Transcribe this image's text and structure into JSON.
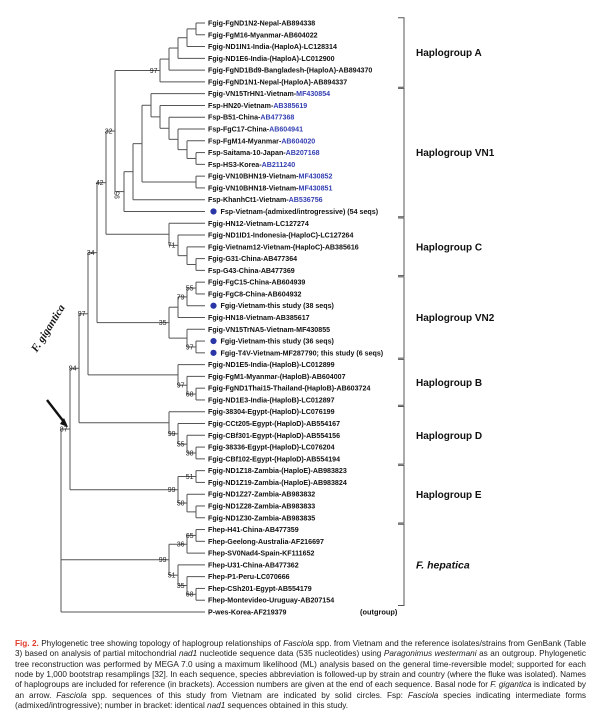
{
  "figure": {
    "fgig_label": "F. gigantica",
    "outgroup_note": "(outgroup)",
    "colors": {
      "line": "#555555",
      "accession_blue": "#3540b2",
      "dot_blue": "#2a35a8",
      "caption_red": "#e03a2a",
      "text": "#111111"
    },
    "groups": [
      {
        "label": "Haplogroup A",
        "from": 0,
        "to": 5,
        "italic": false
      },
      {
        "label": "Haplogroup VN1",
        "from": 6,
        "to": 16,
        "italic": false
      },
      {
        "label": "Haplogroup C",
        "from": 17,
        "to": 21,
        "italic": false
      },
      {
        "label": "Haplogroup VN2",
        "from": 22,
        "to": 28,
        "italic": false
      },
      {
        "label": "Haplogroup B",
        "from": 29,
        "to": 32,
        "italic": false
      },
      {
        "label": "Haplogroup D",
        "from": 33,
        "to": 37,
        "italic": false
      },
      {
        "label": "Haplogroup E",
        "from": 38,
        "to": 42,
        "italic": false
      },
      {
        "label": "F. hepatica",
        "from": 43,
        "to": 49,
        "italic": true
      }
    ],
    "taxa": [
      {
        "pre": "Fgig-FgND1N2-Nepal-",
        "acc": "AB894338",
        "blue": false,
        "dot": false
      },
      {
        "pre": "Fgig-FgM16-Myanmar-",
        "acc": "AB604022",
        "blue": false,
        "dot": false
      },
      {
        "pre": "Fgig-ND1IN1-India-(HaploA)-",
        "acc": "LC128314",
        "blue": false,
        "dot": false
      },
      {
        "pre": "Fgig-ND1E6-India-(HaploA)-",
        "acc": "LC012900",
        "blue": false,
        "dot": false
      },
      {
        "pre": "Fgig-FgND1Bd9-Bangladesh-(HaploA)-",
        "acc": "AB894370",
        "blue": false,
        "dot": false
      },
      {
        "pre": "Fgig-FgND1N1-Nepal-(HaploA)-",
        "acc": "AB894337",
        "blue": false,
        "dot": false
      },
      {
        "pre": "Fgig-VN15TrHN1-Vietnam-",
        "acc": "MF430854",
        "blue": true,
        "dot": false
      },
      {
        "pre": "Fsp-HN20-Vietnam-",
        "acc": "AB385619",
        "blue": true,
        "dot": false
      },
      {
        "pre": "Fsp-B51-China-",
        "acc": "AB477368",
        "blue": true,
        "dot": false
      },
      {
        "pre": "Fsp-FgC17-China-",
        "acc": "AB604941",
        "blue": true,
        "dot": false
      },
      {
        "pre": "Fsp-FgM14-Myanmar-",
        "acc": "AB604020",
        "blue": true,
        "dot": false
      },
      {
        "pre": "Fsp-Saitama-10-Japan-",
        "acc": "AB207168",
        "blue": true,
        "dot": false
      },
      {
        "pre": "Fsp-HS3-Korea-",
        "acc": "AB211240",
        "blue": true,
        "dot": false
      },
      {
        "pre": "Fgig-VN10BHN19-Vietnam-",
        "acc": "MF430852",
        "blue": true,
        "dot": false
      },
      {
        "pre": "Fgig-VN10BHN18-Vietnam-",
        "acc": "MF430851",
        "blue": true,
        "dot": false
      },
      {
        "pre": "Fsp-KhanhCt1-Vietnam-",
        "acc": "AB536756",
        "blue": true,
        "dot": false
      },
      {
        "pre": "Fsp-Vietnam-(admixed/introgressive) (54 seqs)",
        "acc": "",
        "blue": false,
        "dot": true
      },
      {
        "pre": "Fgig-HN12-Vietnam-",
        "acc": "LC127274",
        "blue": false,
        "dot": false
      },
      {
        "pre": "Fgig-ND1ID1-Indonesia-(HaploC)-",
        "acc": "LC127264",
        "blue": false,
        "dot": false
      },
      {
        "pre": "Fgig-Vietnam12-Vietnam-(HaploC)-",
        "acc": "AB385616",
        "blue": false,
        "dot": false
      },
      {
        "pre": "Fgig-G31-China-",
        "acc": "AB477364",
        "blue": false,
        "dot": false
      },
      {
        "pre": "Fsp-G43-China-",
        "acc": "AB477369",
        "blue": false,
        "dot": false
      },
      {
        "pre": "Fgig-FgC15-China-",
        "acc": "AB604939",
        "blue": false,
        "dot": false
      },
      {
        "pre": "Fgig-FgC8-China-",
        "acc": "AB604932",
        "blue": false,
        "dot": false
      },
      {
        "pre": "Fgig-Vietnam-this study (38 seqs)",
        "acc": "",
        "blue": false,
        "dot": true
      },
      {
        "pre": "Fgig-HN18-Vietnam-",
        "acc": "AB385617",
        "blue": false,
        "dot": false
      },
      {
        "pre": "Fgig-VN15TrNA5-Vietnam-",
        "acc": "MF430855",
        "blue": false,
        "dot": false
      },
      {
        "pre": "Fgig-Vietnam-this study (36 seqs)",
        "acc": "",
        "blue": false,
        "dot": true
      },
      {
        "pre": "Fgig-T4V-Vietnam-MF287790; this study (6 seqs)",
        "acc": "",
        "blue": false,
        "dot": true
      },
      {
        "pre": "Fgig-ND1E5-India-(HaploB)-",
        "acc": "LC012899",
        "blue": false,
        "dot": false
      },
      {
        "pre": "Fgig-FgM1-Myanmar-(HaploB)-",
        "acc": "AB604007",
        "blue": false,
        "dot": false
      },
      {
        "pre": "Fgig-FgND1Thai15-Thailand-(HaploB)-",
        "acc": "AB603724",
        "blue": false,
        "dot": false
      },
      {
        "pre": "Fgig-ND1E3-India-(HaploB)-",
        "acc": "LC012897",
        "blue": false,
        "dot": false
      },
      {
        "pre": "Fgig-38304-Egypt-(HaploD)-",
        "acc": "LC076199",
        "blue": false,
        "dot": false
      },
      {
        "pre": "Fgig-CCt205-Egypt-(HaploD)-",
        "acc": "AB554167",
        "blue": false,
        "dot": false
      },
      {
        "pre": "Fgig-CBf301-Egypt-(HaploD)-",
        "acc": "AB554156",
        "blue": false,
        "dot": false
      },
      {
        "pre": "Fgig-38336-Egypt-(HaploD)-",
        "acc": "LC076204",
        "blue": false,
        "dot": false
      },
      {
        "pre": "Fgig-CBf102-Egypt-(HaploD)-",
        "acc": "AB554194",
        "blue": false,
        "dot": false
      },
      {
        "pre": "Fgig-ND1Z18-Zambia-(HaploE)-",
        "acc": "AB983823",
        "blue": false,
        "dot": false
      },
      {
        "pre": "Fgig-ND1Z19-Zambia-(HaploE)-",
        "acc": "AB983824",
        "blue": false,
        "dot": false
      },
      {
        "pre": "Fgig-ND1Z27-Zambia-",
        "acc": "AB983832",
        "blue": false,
        "dot": false
      },
      {
        "pre": "Fgig-ND1Z28-Zambia-",
        "acc": "AB983833",
        "blue": false,
        "dot": false
      },
      {
        "pre": "Fgig-ND1Z30-Zambia-",
        "acc": "AB983835",
        "blue": false,
        "dot": false
      },
      {
        "pre": "Fhep-H41-China-",
        "acc": "AB477359",
        "blue": false,
        "dot": false
      },
      {
        "pre": "Fhep-Geelong-Australia-",
        "acc": "AF216697",
        "blue": false,
        "dot": false
      },
      {
        "pre": "Fhep-SV0Nad4-Spain-",
        "acc": "KF111652",
        "blue": false,
        "dot": false
      },
      {
        "pre": "Fhep-U31-China-",
        "acc": "AB477362",
        "blue": false,
        "dot": false
      },
      {
        "pre": "Fhep-P1-Peru-",
        "acc": "LC070666",
        "blue": false,
        "dot": false
      },
      {
        "pre": "Fhep-CSh201-Egypt-",
        "acc": "AB554179",
        "blue": false,
        "dot": false
      },
      {
        "pre": "Fhep-Montevideo-Uruguay-",
        "acc": "AB207154",
        "blue": false,
        "dot": false
      },
      {
        "pre": "P-wes-Korea-",
        "acc": "AF219379",
        "blue": false,
        "dot": false,
        "outgroup": true
      }
    ],
    "tree": {
      "c": [
        {
          "b": "87",
          "a": 1,
          "c": [
            {
              "b": "94",
              "c": [
                {
                  "b": "97",
                  "c": [
                    {
                      "b": "34",
                      "c": [
                        {
                          "b": "42",
                          "c": [
                            {
                              "b": "32",
                              "c": [
                                {
                                  "b": "97",
                                  "c": [
                                    {
                                      "c": [
                                        {
                                          "c": [
                                            {
                                              "c": [
                                                {
                                                  "c": [
                                                    0,
                                                    1
                                                  ]
                                                },
                                                2
                                              ]
                                            },
                                            3
                                          ]
                                        },
                                        4
                                      ]
                                    },
                                    5
                                  ]
                                },
                                {
                                  "b": "95",
                                  "r": 1,
                                  "c": [
                                    {
                                      "c": [
                                        {
                                          "c": [
                                            {
                                              "c": [
                                                6,
                                                {
                                                  "c": [
                                                    7,
                                                    {
                                                      "c": [
                                                        8,
                                                        {
                                                          "c": [
                                                            9,
                                                            {
                                                              "c": [
                                                                10,
                                                                {
                                                                  "c": [
                                                                    11,
                                                                    12
                                                                  ]
                                                                }
                                                              ]
                                                            }
                                                          ]
                                                        }
                                                      ]
                                                    }
                                                  ]
                                                }
                                              ]
                                            },
                                            {
                                              "c": [
                                                13,
                                                14
                                              ]
                                            }
                                          ]
                                        },
                                        15
                                      ]
                                    },
                                    16
                                  ]
                                }
                              ]
                            },
                            {
                              "c": [
                                17,
                                {
                                  "b": "71",
                                  "c": [
                                    18,
                                    {
                                      "c": [
                                        19,
                                        {
                                          "c": [
                                            20,
                                            21
                                          ]
                                        }
                                      ]
                                    }
                                  ]
                                }
                              ]
                            }
                          ]
                        },
                        {
                          "b": "35",
                          "c": [
                            {
                              "c": [
                                {
                                  "b": "79",
                                  "c": [
                                    {
                                      "b": "55",
                                      "c": [
                                        22,
                                        23
                                      ]
                                    },
                                    24
                                  ]
                                },
                                25
                              ]
                            },
                            {
                              "c": [
                                26,
                                {
                                  "b": "97",
                                  "c": [
                                    27,
                                    28
                                  ]
                                }
                              ]
                            }
                          ]
                        }
                      ]
                    },
                    {
                      "c": [
                        29,
                        {
                          "b": "97",
                          "c": [
                            30,
                            {
                              "b": "68",
                              "c": [
                                31,
                                32
                              ]
                            }
                          ]
                        }
                      ]
                    }
                  ]
                },
                {
                  "c": [
                    33,
                    {
                      "b": "99",
                      "c": [
                        34,
                        {
                          "b": "55",
                          "c": [
                            35,
                            {
                              "b": "38",
                              "c": [
                                36,
                                37
                              ]
                            }
                          ]
                        }
                      ]
                    }
                  ]
                }
              ]
            },
            {
              "b": "99",
              "c": [
                {
                  "b": "51",
                  "c": [
                    38,
                    39
                  ]
                },
                {
                  "b": "50",
                  "c": [
                    40,
                    {
                      "c": [
                        41,
                        42
                      ]
                    }
                  ]
                }
              ]
            }
          ]
        },
        {
          "b": "99",
          "c": [
            {
              "b": "36",
              "c": [
                {
                  "b": "65",
                  "c": [
                    43,
                    44
                  ]
                },
                45
              ]
            },
            {
              "b": "51",
              "c": [
                46,
                {
                  "b": "35",
                  "c": [
                    47,
                    {
                      "b": "68",
                      "c": [
                        48,
                        49
                      ]
                    }
                  ]
                }
              ]
            }
          ]
        },
        50
      ]
    },
    "caption_segments": [
      {
        "text": "Fig. 2.",
        "red": true
      },
      {
        "text": " Phylogenetic tree showing topology of haplogroup relationships of "
      },
      {
        "text": "Fasciola",
        "italic": true
      },
      {
        "text": " spp. from Vietnam and the reference isolates/strains from GenBank (Table 3) based on analysis of partial mitochondrial "
      },
      {
        "text": "nad1",
        "italic": true
      },
      {
        "text": " nucleotide sequence data (535 nucleotides) using "
      },
      {
        "text": "Paragonimus westermani",
        "italic": true
      },
      {
        "text": " as an outgroup. Phylogenetic tree reconstruction was performed by MEGA 7.0 using a maximum likelihood (ML) analysis based on the general time-reversible model; supported for each node by 1,000 bootstrap resamplings [32]. In each sequence, species abbreviation is followed-up by strain and country (where the fluke was isolated). Names of haplogroups are included for reference (in brackets). Accession numbers are given at the end of each sequence. Basal node for "
      },
      {
        "text": "F. gigantica",
        "italic": true
      },
      {
        "text": " is indicated by an arrow. "
      },
      {
        "text": "Fasciola",
        "italic": true
      },
      {
        "text": " spp. sequences of this study from Vietnam are indicated by solid circles. Fsp: "
      },
      {
        "text": "Fasciola",
        "italic": true
      },
      {
        "text": " species indicating intermediate forms (admixed/introgressive); number in bracket: identical "
      },
      {
        "text": "nad1",
        "italic": true
      },
      {
        "text": " sequences obtained in this study."
      }
    ]
  }
}
